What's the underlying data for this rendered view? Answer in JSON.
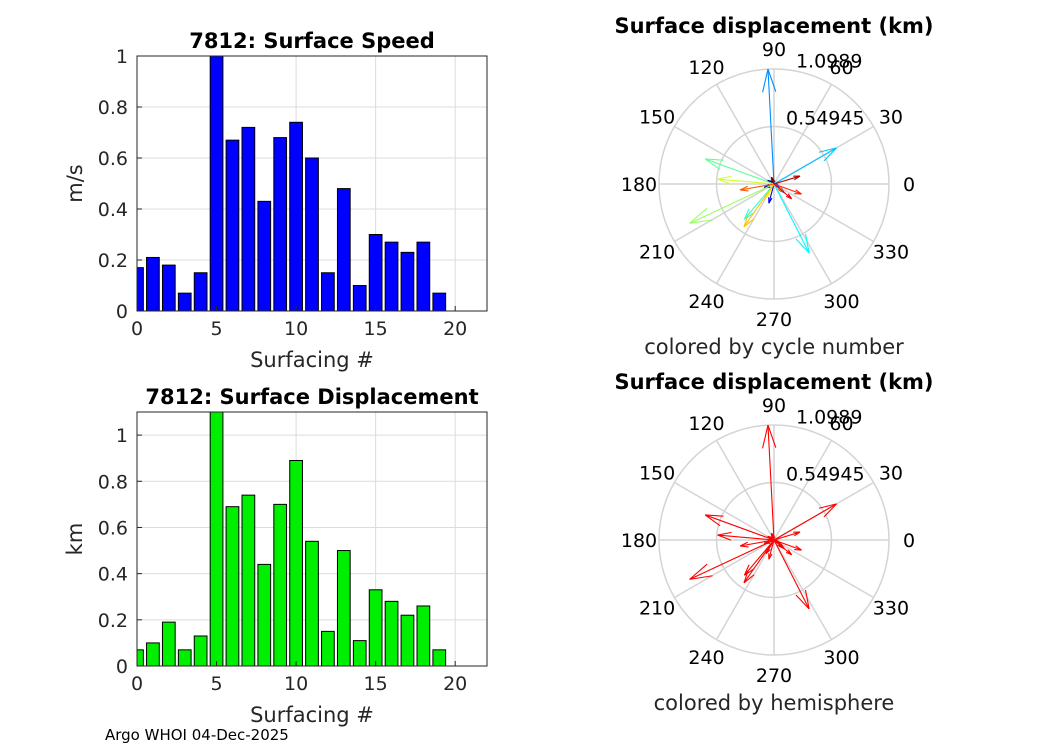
{
  "chart_data": [
    {
      "type": "bar",
      "title": "7812: Surface Speed",
      "xlabel": "Surfacing #",
      "ylabel": "m/s",
      "xlim": [
        0,
        22
      ],
      "ylim": [
        0,
        1
      ],
      "xticks": [
        "0",
        "5",
        "10",
        "15",
        "20"
      ],
      "yticks": [
        "0",
        "0.2",
        "0.4",
        "0.6",
        "0.8",
        "1"
      ],
      "grid": true,
      "color": "#0000ff",
      "x": [
        0,
        1,
        2,
        3,
        4,
        5,
        6,
        7,
        8,
        9,
        10,
        11,
        12,
        13,
        14,
        15,
        16,
        17,
        18,
        19
      ],
      "values": [
        0.17,
        0.21,
        0.18,
        0.07,
        0.15,
        1.01,
        0.67,
        0.72,
        0.43,
        0.68,
        0.74,
        0.6,
        0.15,
        0.48,
        0.1,
        0.3,
        0.27,
        0.23,
        0.27,
        0.07
      ]
    },
    {
      "type": "bar",
      "title": "7812: Surface Displacement",
      "xlabel": "Surfacing #",
      "ylabel": "km",
      "xlim": [
        0,
        22
      ],
      "ylim": [
        0,
        1.1
      ],
      "xticks": [
        "0",
        "5",
        "10",
        "15",
        "20"
      ],
      "yticks": [
        "0",
        "0.2",
        "0.4",
        "0.6",
        "0.8",
        "1"
      ],
      "grid": true,
      "color": "#00ee00",
      "x": [
        0,
        1,
        2,
        3,
        4,
        5,
        6,
        7,
        8,
        9,
        10,
        11,
        12,
        13,
        14,
        15,
        16,
        17,
        18,
        19
      ],
      "values": [
        0.07,
        0.1,
        0.19,
        0.07,
        0.13,
        1.1,
        0.69,
        0.74,
        0.44,
        0.7,
        0.89,
        0.54,
        0.15,
        0.5,
        0.11,
        0.33,
        0.28,
        0.22,
        0.26,
        0.07
      ]
    },
    {
      "type": "polar-compass",
      "title": "Surface displacement (km)",
      "xlabel": "colored by cycle number",
      "rmax": 1.0989,
      "rlabels": [
        "0.54945",
        "1.0989"
      ],
      "angle_labels": [
        "0",
        "30",
        "60",
        "90",
        "120",
        "150",
        "180",
        "210",
        "240",
        "270",
        "300",
        "330"
      ],
      "coloring": "cycle",
      "vectors": [
        {
          "cycle": 0,
          "r": 0.07,
          "angle": 150
        },
        {
          "cycle": 1,
          "r": 0.1,
          "angle": 200
        },
        {
          "cycle": 2,
          "r": 0.19,
          "angle": 255
        },
        {
          "cycle": 3,
          "r": 0.07,
          "angle": 330
        },
        {
          "cycle": 4,
          "r": 0.13,
          "angle": 320
        },
        {
          "cycle": 5,
          "r": 1.1,
          "angle": 93
        },
        {
          "cycle": 6,
          "r": 0.69,
          "angle": 30
        },
        {
          "cycle": 7,
          "r": 0.74,
          "angle": 297
        },
        {
          "cycle": 8,
          "r": 0.44,
          "angle": 230
        },
        {
          "cycle": 9,
          "r": 0.7,
          "angle": 160
        },
        {
          "cycle": 10,
          "r": 0.89,
          "angle": 205
        },
        {
          "cycle": 11,
          "r": 0.54,
          "angle": 175
        },
        {
          "cycle": 12,
          "r": 0.15,
          "angle": 240
        },
        {
          "cycle": 13,
          "r": 0.5,
          "angle": 235
        },
        {
          "cycle": 14,
          "r": 0.11,
          "angle": 320
        },
        {
          "cycle": 15,
          "r": 0.33,
          "angle": 190
        },
        {
          "cycle": 16,
          "r": 0.28,
          "angle": 340
        },
        {
          "cycle": 17,
          "r": 0.22,
          "angle": 320
        },
        {
          "cycle": 18,
          "r": 0.26,
          "angle": 17
        },
        {
          "cycle": 19,
          "r": 0.07,
          "angle": 110
        }
      ]
    },
    {
      "type": "polar-compass",
      "title": "Surface displacement (km)",
      "xlabel": "colored by hemisphere",
      "rmax": 1.0989,
      "rlabels": [
        "0.54945",
        "1.0989"
      ],
      "angle_labels": [
        "0",
        "30",
        "60",
        "90",
        "120",
        "150",
        "180",
        "210",
        "240",
        "270",
        "300",
        "330"
      ],
      "coloring": "hemisphere",
      "color": "#ff0000",
      "vectors": [
        {
          "cycle": 0,
          "r": 0.07,
          "angle": 150
        },
        {
          "cycle": 1,
          "r": 0.1,
          "angle": 200
        },
        {
          "cycle": 2,
          "r": 0.19,
          "angle": 255
        },
        {
          "cycle": 3,
          "r": 0.07,
          "angle": 330
        },
        {
          "cycle": 4,
          "r": 0.13,
          "angle": 320
        },
        {
          "cycle": 5,
          "r": 1.1,
          "angle": 93
        },
        {
          "cycle": 6,
          "r": 0.69,
          "angle": 30
        },
        {
          "cycle": 7,
          "r": 0.74,
          "angle": 297
        },
        {
          "cycle": 8,
          "r": 0.44,
          "angle": 230
        },
        {
          "cycle": 9,
          "r": 0.7,
          "angle": 160
        },
        {
          "cycle": 10,
          "r": 0.89,
          "angle": 205
        },
        {
          "cycle": 11,
          "r": 0.54,
          "angle": 175
        },
        {
          "cycle": 12,
          "r": 0.15,
          "angle": 240
        },
        {
          "cycle": 13,
          "r": 0.5,
          "angle": 235
        },
        {
          "cycle": 14,
          "r": 0.11,
          "angle": 320
        },
        {
          "cycle": 15,
          "r": 0.33,
          "angle": 190
        },
        {
          "cycle": 16,
          "r": 0.28,
          "angle": 340
        },
        {
          "cycle": 17,
          "r": 0.22,
          "angle": 320
        },
        {
          "cycle": 18,
          "r": 0.26,
          "angle": 17
        },
        {
          "cycle": 19,
          "r": 0.07,
          "angle": 110
        }
      ]
    }
  ],
  "footer": {
    "text": "Argo WHOI 04-Dec-2025"
  }
}
